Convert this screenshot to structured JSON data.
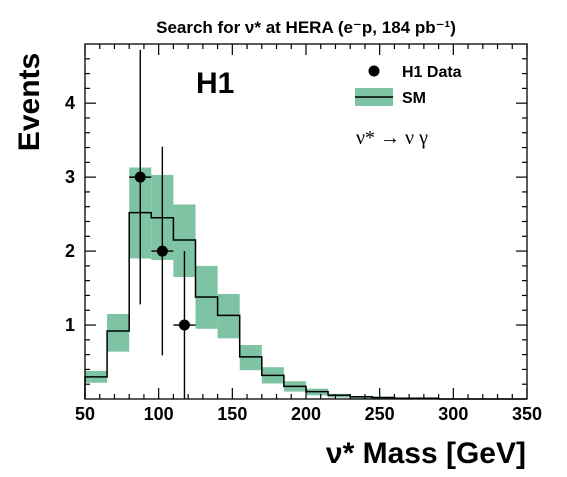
{
  "chart_data": {
    "type": "bar",
    "title": "Search for ν* at HERA (e⁻p, 184 pb⁻¹)",
    "experiment_label": "H1",
    "process_label": "ν* → ν γ",
    "xlabel": "ν* Mass [GeV]",
    "ylabel": "Events",
    "xlim": [
      50,
      350
    ],
    "ylim": [
      0,
      4.8
    ],
    "x_ticks": [
      50,
      100,
      150,
      200,
      250,
      300,
      350
    ],
    "y_ticks": [
      1,
      2,
      3,
      4
    ],
    "legend": {
      "placement": "top-right",
      "entries": [
        {
          "label": "H1 Data",
          "style": "marker",
          "color": "#000000"
        },
        {
          "label": "SM",
          "style": "line-band",
          "color": "#000000",
          "band_color": "#7ec4a4"
        }
      ]
    },
    "sm_histogram": {
      "name": "SM",
      "bin_edges": [
        50,
        65,
        80,
        95,
        110,
        125,
        140,
        155,
        170,
        185,
        200,
        215,
        230,
        245,
        260,
        275,
        290,
        305,
        320,
        335,
        350
      ],
      "values": [
        0.3,
        0.92,
        2.52,
        2.45,
        2.15,
        1.38,
        1.13,
        0.57,
        0.32,
        0.17,
        0.1,
        0.05,
        0.03,
        0.02,
        0.01,
        0.01,
        0.0,
        0.0,
        0.0,
        0.0
      ],
      "band_low": [
        0.22,
        0.64,
        1.9,
        1.88,
        1.65,
        0.95,
        0.82,
        0.39,
        0.21,
        0.1,
        0.05,
        0.02,
        0.01,
        0.0,
        0.0,
        0.0,
        0.0,
        0.0,
        0.0,
        0.0
      ],
      "band_high": [
        0.38,
        1.15,
        3.13,
        3.03,
        2.63,
        1.8,
        1.42,
        0.73,
        0.43,
        0.24,
        0.14,
        0.07,
        0.04,
        0.03,
        0.02,
        0.01,
        0.0,
        0.0,
        0.0,
        0.0
      ],
      "band_color": "#7ec4a4",
      "line_color": "#000000"
    },
    "data_points": {
      "name": "H1 Data",
      "x": [
        87.5,
        102.5,
        117.5
      ],
      "y": [
        3,
        2,
        1
      ],
      "y_err_low": [
        1.72,
        1.41,
        1.0
      ],
      "y_err_high": [
        1.72,
        1.41,
        1.0
      ],
      "x_err": [
        7.5,
        7.5,
        7.5
      ]
    }
  }
}
